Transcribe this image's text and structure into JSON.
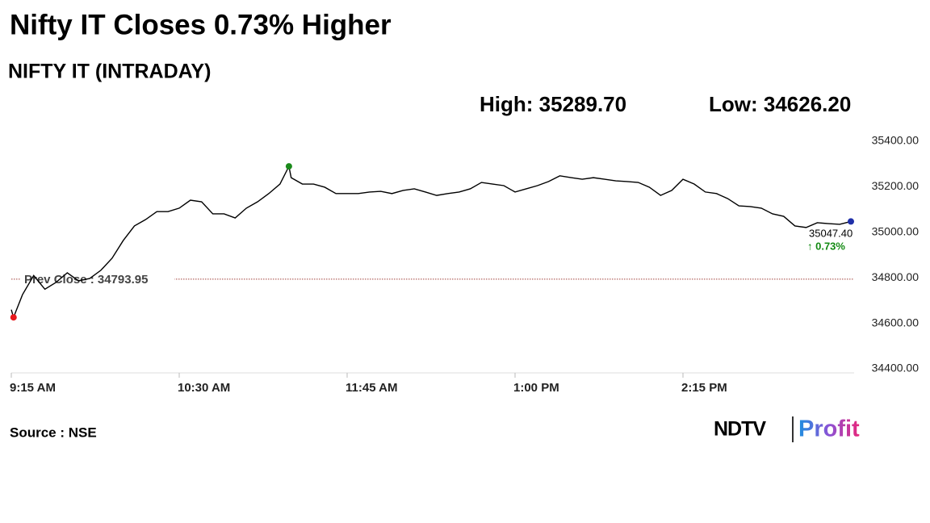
{
  "chart_data": {
    "type": "line",
    "title": "Nifty IT Closes 0.73% Higher",
    "subtitle": "NIFTY IT (INTRADAY)",
    "high_label": "High: 35289.70",
    "low_label": "Low: 34626.20",
    "reference_line": {
      "value": 34793.95,
      "label": "Prev Close : 34793.95",
      "color": "#a0403a"
    },
    "last_label": "35047.40",
    "change_label": "↑ 0.73%",
    "source": "Source : NSE",
    "brand": {
      "name": "NDTV",
      "product": "Profit"
    },
    "color": "#000000",
    "x": [
      "9:15 AM",
      "9:16 AM",
      "9:20 AM",
      "9:25 AM",
      "9:30 AM",
      "9:35 AM",
      "9:40 AM",
      "9:45 AM",
      "9:50 AM",
      "9:55 AM",
      "10:00 AM",
      "10:05 AM",
      "10:10 AM",
      "10:15 AM",
      "10:20 AM",
      "10:25 AM",
      "10:30 AM",
      "10:35 AM",
      "10:40 AM",
      "10:45 AM",
      "10:50 AM",
      "10:55 AM",
      "11:00 AM",
      "11:05 AM",
      "11:10 AM",
      "11:15 AM",
      "11:19 AM",
      "11:20 AM",
      "11:25 AM",
      "11:30 AM",
      "11:35 AM",
      "11:40 AM",
      "11:45 AM",
      "11:50 AM",
      "11:55 AM",
      "12:00 PM",
      "12:05 PM",
      "12:10 PM",
      "12:15 PM",
      "12:20 PM",
      "12:25 PM",
      "12:30 PM",
      "12:35 PM",
      "12:40 PM",
      "12:45 PM",
      "12:50 PM",
      "12:55 PM",
      "1:00 PM",
      "1:05 PM",
      "1:10 PM",
      "1:15 PM",
      "1:20 PM",
      "1:25 PM",
      "1:30 PM",
      "1:35 PM",
      "1:40 PM",
      "1:45 PM",
      "1:50 PM",
      "1:55 PM",
      "2:00 PM",
      "2:05 PM",
      "2:10 PM",
      "2:15 PM",
      "2:20 PM",
      "2:25 PM",
      "2:30 PM",
      "2:35 PM",
      "2:40 PM",
      "2:45 PM",
      "2:50 PM",
      "2:55 PM",
      "3:00 PM",
      "3:05 PM",
      "3:10 PM",
      "3:15 PM",
      "3:20 PM",
      "3:25 PM",
      "3:30 PM"
    ],
    "values": [
      34660,
      34626.2,
      34726,
      34810,
      34750,
      34780,
      34822,
      34787,
      34797,
      34833,
      34886,
      34964,
      35028,
      35056,
      35091,
      35091,
      35106,
      35141,
      35134,
      35081,
      35081,
      35063,
      35106,
      35134,
      35170,
      35212,
      35289.7,
      35240,
      35212,
      35212,
      35198,
      35170,
      35170,
      35170,
      35177,
      35180,
      35170,
      35184,
      35191,
      35177,
      35162,
      35170,
      35177,
      35191,
      35219,
      35212,
      35205,
      35177,
      35191,
      35205,
      35223,
      35248,
      35240,
      35233,
      35240,
      35233,
      35226,
      35223,
      35219,
      35198,
      35162,
      35184,
      35233,
      35212,
      35177,
      35170,
      35148,
      35116,
      35113,
      35106,
      35081,
      35070,
      35028,
      35021,
      35042,
      35038,
      35035,
      35047.4
    ],
    "xlim": [
      "9:15 AM",
      "3:30 PM"
    ],
    "xticks": [
      "9:15 AM",
      "10:30 AM",
      "11:45 AM",
      "1:00 PM",
      "2:15 PM"
    ],
    "ylim": [
      34400,
      35400
    ],
    "yticks": [
      {
        "value": 34400,
        "label": "34400.00"
      },
      {
        "value": 34600,
        "label": "34600.00"
      },
      {
        "value": 34800,
        "label": "34800.00"
      },
      {
        "value": 35000,
        "label": "35000.00"
      },
      {
        "value": 35200,
        "label": "35200.00"
      },
      {
        "value": 35400,
        "label": "35400.00"
      }
    ],
    "marker_colors": {
      "low": "#e8191d",
      "high": "#1a8a1a",
      "last": "#1f2fa8"
    },
    "change_color": "#138a13"
  }
}
